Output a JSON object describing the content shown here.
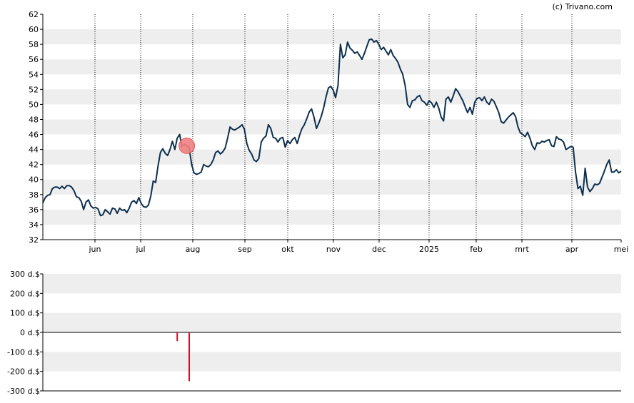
{
  "credit": "(c) Trivano.com",
  "colors": {
    "price_line": "#0d3050",
    "band": "#eeeeee",
    "marker_fill": "#f08080",
    "marker_stroke": "#e05050",
    "volume_bar": "#d0102a",
    "axis": "#000000",
    "grid": "#000000"
  },
  "chart_data": [
    {
      "type": "line",
      "title": "",
      "x_ticks": [
        "jun",
        "jul",
        "aug",
        "sep",
        "okt",
        "nov",
        "dec",
        "2025",
        "feb",
        "mrt",
        "apr",
        "mei"
      ],
      "y_ticks": [
        "32",
        "34",
        "36",
        "38",
        "40",
        "42",
        "44",
        "46",
        "48",
        "50",
        "52",
        "54",
        "56",
        "58",
        "60",
        "62"
      ],
      "ylim": [
        32,
        62
      ],
      "grid": "vertical dotted at month boundaries, alternating horizontal bands",
      "series": [
        {
          "values": [
            36.9,
            37.6,
            37.9,
            38.0,
            38.8,
            39.0,
            39.0,
            38.8,
            39.1,
            38.8,
            39.2,
            39.2,
            39.0,
            38.5,
            37.7,
            37.6,
            37.1,
            36.0,
            37.0,
            37.3,
            36.5,
            36.2,
            36.3,
            36.1,
            35.2,
            35.3,
            36.0,
            35.7,
            35.4,
            36.2,
            36.1,
            35.5,
            36.2,
            35.9,
            36.0,
            35.6,
            36.2,
            37.0,
            37.2,
            36.8,
            37.6,
            36.8,
            36.4,
            36.3,
            36.6,
            37.8,
            39.8,
            39.6,
            41.8,
            43.6,
            44.1,
            43.5,
            43.2,
            44.0,
            45.1,
            44.0,
            45.5,
            46.0,
            44.4,
            44.7,
            44.5,
            44.2,
            42.0,
            40.9,
            40.7,
            40.8,
            41.0,
            42.0,
            41.8,
            41.7,
            42.0,
            42.6,
            43.6,
            43.8,
            43.4,
            43.7,
            44.2,
            45.5,
            47.0,
            46.7,
            46.6,
            46.8,
            47.0,
            47.3,
            46.7,
            44.8,
            43.9,
            43.4,
            42.6,
            42.4,
            42.8,
            45.0,
            45.5,
            45.8,
            47.3,
            46.8,
            45.6,
            45.5,
            45.0,
            45.5,
            45.6,
            44.3,
            45.2,
            44.8,
            45.3,
            45.6,
            44.8,
            45.9,
            46.8,
            47.3,
            48.1,
            49.0,
            49.4,
            48.3,
            46.8,
            47.5,
            48.4,
            49.5,
            51.0,
            52.2,
            52.4,
            51.9,
            50.9,
            52.5,
            58.0,
            56.2,
            56.6,
            58.3,
            57.5,
            57.2,
            56.8,
            57.0,
            56.5,
            56.0,
            56.8,
            57.7,
            58.6,
            58.7,
            58.3,
            58.5,
            58.0,
            57.3,
            57.6,
            57.1,
            56.6,
            57.3,
            56.5,
            56.1,
            55.6,
            54.7,
            54.0,
            52.5,
            50.0,
            49.6,
            50.5,
            50.6,
            51.0,
            51.2,
            50.5,
            50.3,
            49.9,
            50.5,
            50.2,
            49.6,
            50.3,
            49.5,
            48.3,
            47.8,
            50.7,
            51.0,
            50.3,
            51.1,
            52.1,
            51.7,
            51.1,
            50.5,
            49.7,
            48.9,
            49.6,
            48.7,
            50.3,
            50.8,
            50.9,
            50.5,
            51.0,
            50.3,
            50.0,
            50.7,
            50.4,
            49.7,
            48.9,
            47.7,
            47.5,
            47.9,
            48.3,
            48.6,
            48.9,
            48.4,
            47.0,
            46.2,
            46.0,
            45.7,
            46.3,
            45.5,
            44.5,
            44.0,
            44.9,
            44.8,
            45.1,
            45.0,
            45.2,
            45.3,
            44.5,
            44.4,
            45.7,
            45.4,
            45.3,
            45.0,
            44.0,
            44.2,
            44.4,
            44.3,
            41.0,
            38.8,
            39.1,
            37.9,
            41.5,
            39.0,
            38.4,
            38.8,
            39.4,
            39.3,
            39.5,
            40.3,
            41.1,
            42.0,
            42.6,
            41.0,
            41.0,
            41.3,
            40.9,
            41.1
          ]
        }
      ],
      "marker": {
        "index": 60,
        "value": 44.5
      }
    },
    {
      "type": "bar",
      "title": "",
      "y_ticks": [
        "300 d.$",
        "200 d.$",
        "100 d.$",
        "0 d.$",
        "-100 d.$",
        "-200 d.$",
        "-300 d.$"
      ],
      "ylim": [
        -300,
        300
      ],
      "bars": [
        {
          "index": 56,
          "value": -45
        },
        {
          "index": 61,
          "value": -250
        }
      ]
    }
  ]
}
